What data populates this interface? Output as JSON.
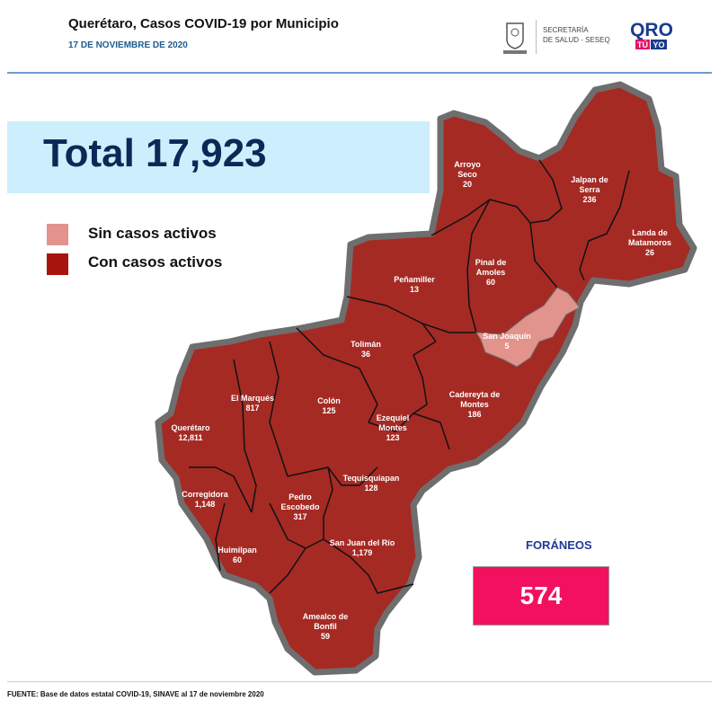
{
  "header": {
    "title": "Querétaro, Casos COVID-19 por Municipio",
    "date": "17 DE NOVIEMBRE DE 2020",
    "logos": {
      "gov_seal_text": "QUERÉTARO",
      "secretaria_line1": "SECRETARÍA",
      "secretaria_line2": "DE SALUD - SESEQ",
      "qro_logo_text": "QRO TÚ YO"
    }
  },
  "total": {
    "label": "Total 17,923"
  },
  "legend": [
    {
      "label": "Sin casos activos",
      "color": "#e2938c"
    },
    {
      "label": "Con casos activos",
      "color": "#a8150e"
    }
  ],
  "colors": {
    "active": "#a52a24",
    "inactive": "#e2938c",
    "outline": "#6e6e6e",
    "foraneos": "#f3105f"
  },
  "municipios": [
    {
      "name_lines": [
        "Arroyo",
        "Seco"
      ],
      "cases": "20",
      "active": true
    },
    {
      "name_lines": [
        "Jalpan de",
        "Serra"
      ],
      "cases": "236",
      "active": true
    },
    {
      "name_lines": [
        "Landa de",
        "Matamoros"
      ],
      "cases": "26",
      "active": true
    },
    {
      "name_lines": [
        "Pinal de",
        "Amoles"
      ],
      "cases": "60",
      "active": true
    },
    {
      "name_lines": [
        "Peñamiller"
      ],
      "cases": "13",
      "active": true
    },
    {
      "name_lines": [
        "San Joaquín"
      ],
      "cases": "5",
      "active": false
    },
    {
      "name_lines": [
        "Tolimán"
      ],
      "cases": "36",
      "active": true
    },
    {
      "name_lines": [
        "Cadereyta de",
        "Montes"
      ],
      "cases": "186",
      "active": true
    },
    {
      "name_lines": [
        "El  Marqués"
      ],
      "cases": "817",
      "active": true
    },
    {
      "name_lines": [
        "Colón"
      ],
      "cases": "125",
      "active": true
    },
    {
      "name_lines": [
        "Querétaro"
      ],
      "cases": "12,811",
      "active": true
    },
    {
      "name_lines": [
        "Ezequiel",
        "Montes"
      ],
      "cases": "123",
      "active": true
    },
    {
      "name_lines": [
        "Tequisquiapan"
      ],
      "cases": "128",
      "active": true
    },
    {
      "name_lines": [
        "Corregidora"
      ],
      "cases": "1,148",
      "active": true
    },
    {
      "name_lines": [
        "Pedro",
        "Escobedo"
      ],
      "cases": "317",
      "active": true
    },
    {
      "name_lines": [
        "San Juan del Río"
      ],
      "cases": "1,179",
      "active": true
    },
    {
      "name_lines": [
        "Huimilpan"
      ],
      "cases": "60",
      "active": true
    },
    {
      "name_lines": [
        "Amealco de",
        "Bonfil"
      ],
      "cases": "59",
      "active": true
    }
  ],
  "foraneos": {
    "label": "FORÁNEOS",
    "value": "574"
  },
  "source": "FUENTE: Base de datos estatal COVID-19, SINAVE al 17 de noviembre  2020"
}
